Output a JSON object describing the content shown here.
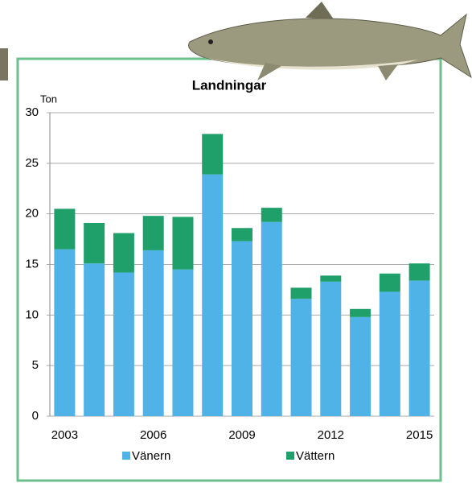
{
  "chart_data": {
    "type": "stacked_bar",
    "title": "Landningar",
    "y_label": "Ton",
    "categories": [
      "2003",
      null,
      null,
      "2006",
      null,
      null,
      "2009",
      null,
      null,
      "2012",
      null,
      null,
      "2015"
    ],
    "series": [
      {
        "name": "Vänern",
        "color": "#4fb3e8",
        "values": [
          16.5,
          15.1,
          14.2,
          16.4,
          14.5,
          23.9,
          17.3,
          19.2,
          11.6,
          13.3,
          9.8,
          12.3,
          13.4
        ]
      },
      {
        "name": "Vättern",
        "color": "#1fa06a",
        "values": [
          4.0,
          4.0,
          3.9,
          3.4,
          5.2,
          4.0,
          1.3,
          1.4,
          1.1,
          0.6,
          0.8,
          1.8,
          1.7
        ]
      }
    ],
    "ylim": [
      0,
      30
    ],
    "yticks": [
      0,
      5,
      10,
      15,
      20,
      25,
      30
    ],
    "grid": true
  }
}
